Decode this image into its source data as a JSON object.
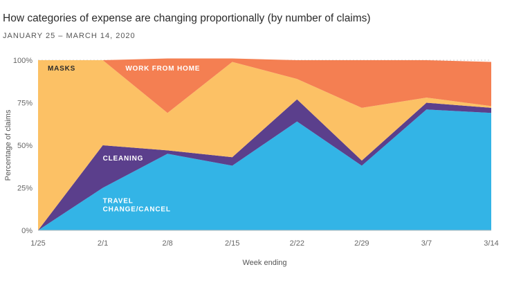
{
  "title": "How categories of expense are changing proportionally (by number of claims)",
  "subtitle": "JANUARY 25 – MARCH 14, 2020",
  "chart_data": {
    "type": "area",
    "stacked": true,
    "x": [
      "1/25",
      "2/1",
      "2/8",
      "2/15",
      "2/22",
      "2/29",
      "3/7",
      "3/14"
    ],
    "xlabel": "Week ending",
    "ylabel": "Percentage of claims",
    "yticks": [
      "0%",
      "25%",
      "50%",
      "75%",
      "100%"
    ],
    "ylim": [
      0,
      100
    ],
    "grid": true,
    "series": [
      {
        "name": "TRAVEL CHANGE/CANCEL",
        "color": "#33b4e6",
        "values": [
          0,
          25,
          45,
          38,
          64,
          38,
          71,
          69
        ]
      },
      {
        "name": "CLEANING",
        "color": "#5b3f8c",
        "values": [
          0,
          25,
          2,
          5,
          13,
          3,
          4,
          3
        ]
      },
      {
        "name": "MASKS",
        "color": "#fcc165",
        "values": [
          100,
          50,
          22,
          56,
          12,
          31,
          3,
          1
        ]
      },
      {
        "name": "WORK FROM HOME",
        "color": "#f47f52",
        "values": [
          0,
          0,
          32,
          2,
          11,
          28,
          22,
          26
        ]
      }
    ],
    "labels": [
      {
        "series": 0,
        "lines": [
          "TRAVEL",
          "CHANGE/CANCEL"
        ],
        "x": 1,
        "y": 16,
        "color": "#ffffff"
      },
      {
        "series": 1,
        "lines": [
          "CLEANING"
        ],
        "x": 1,
        "y": 41,
        "color": "#ffffff"
      },
      {
        "series": 2,
        "lines": [
          "MASKS"
        ],
        "x": 0.15,
        "y": 94,
        "color": "#2b2b2b"
      },
      {
        "series": 3,
        "lines": [
          "WORK FROM HOME"
        ],
        "x": 1.35,
        "y": 94,
        "color": "#ffffff"
      }
    ]
  }
}
